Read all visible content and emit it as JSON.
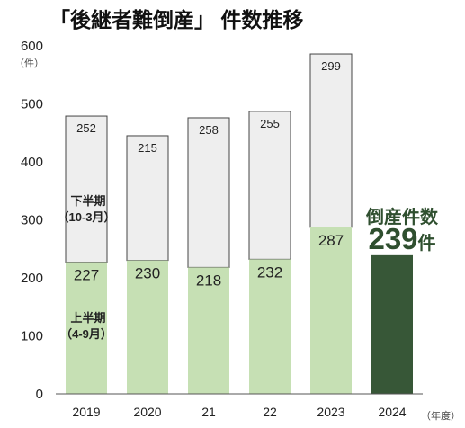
{
  "chart_data": {
    "type": "bar",
    "title": "「後継者難倒産」 件数推移",
    "y_unit": "（件）",
    "x_unit": "（年度）",
    "categories": [
      "2019",
      "2020",
      "21",
      "22",
      "2023",
      "2024"
    ],
    "ylim": [
      0,
      600
    ],
    "yticks": [
      "0",
      "100",
      "200",
      "300",
      "400",
      "500",
      "600"
    ],
    "series": [
      {
        "name": "上半期（4-9月）",
        "values": [
          227,
          230,
          218,
          232,
          287,
          null
        ],
        "color": "#c6e0b4"
      },
      {
        "name": "下半期（10-3月）",
        "values": [
          252,
          215,
          258,
          255,
          299,
          null
        ],
        "color": "#eeeeee"
      }
    ],
    "highlight": {
      "category": "2024",
      "value": 239,
      "color": "#375737",
      "label_line1": "倒産件数",
      "label_value": "239",
      "label_unit": "件"
    },
    "half_labels": {
      "lower_line1": "上半期",
      "lower_line2": "（4-9月）",
      "upper_line1": "下半期",
      "upper_line2": "（10-3月）"
    },
    "grid": false,
    "legend": "none"
  }
}
